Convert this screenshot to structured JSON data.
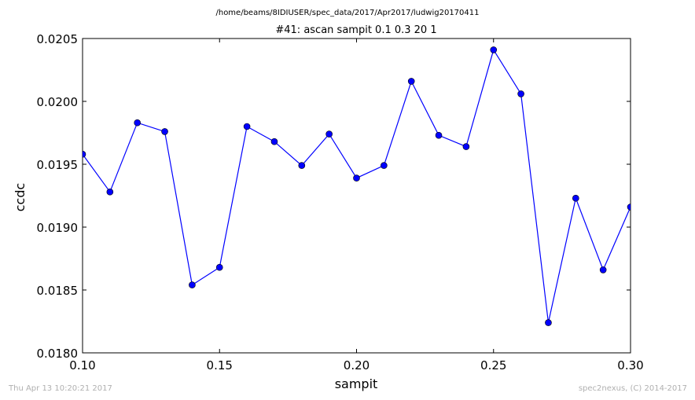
{
  "chart_data": {
    "type": "line",
    "suptitle": "/home/beams/8IDIUSER/spec_data/2017/Apr2017/ludwig20170411",
    "title": "#41: ascan  sampit 0.1 0.3  20 1",
    "xlabel": "sampit",
    "ylabel": "ccdc",
    "xlim": [
      0.1,
      0.3
    ],
    "ylim": [
      0.018,
      0.0205
    ],
    "xticks": [
      "0.10",
      "0.15",
      "0.20",
      "0.25",
      "0.30"
    ],
    "yticks": [
      "0.0180",
      "0.0185",
      "0.0190",
      "0.0195",
      "0.0200",
      "0.0205"
    ],
    "grid": false,
    "line_color": "#0000ff",
    "marker_color": "#0000ff",
    "x": [
      0.1,
      0.11,
      0.12,
      0.13,
      0.14,
      0.15,
      0.16,
      0.17,
      0.18,
      0.19,
      0.2,
      0.21,
      0.22,
      0.23,
      0.24,
      0.25,
      0.26,
      0.27,
      0.28,
      0.29,
      0.3
    ],
    "y": [
      0.01958,
      0.01928,
      0.01983,
      0.01976,
      0.01854,
      0.01868,
      0.0198,
      0.01968,
      0.01949,
      0.01974,
      0.01939,
      0.01949,
      0.02016,
      0.01973,
      0.01964,
      0.02041,
      0.02006,
      0.01824,
      0.01923,
      0.01866,
      0.01916
    ]
  },
  "footer": {
    "timestamp": "Thu Apr 13 10:20:21 2017",
    "credit": "spec2nexus, (C) 2014-2017"
  }
}
